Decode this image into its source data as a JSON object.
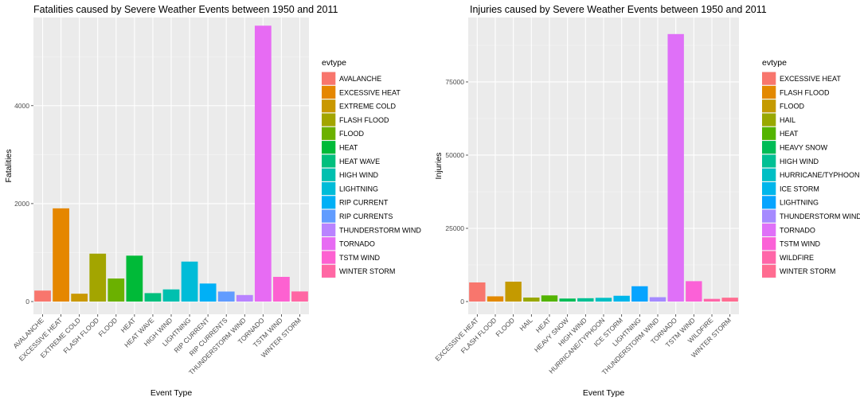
{
  "chart_data": [
    {
      "type": "bar",
      "title": "Fatalities caused by Severe Weather Events between 1950 and 2011",
      "xlabel": "Event Type",
      "ylabel": "Fatalities",
      "ylim": [
        0,
        5800
      ],
      "yticks": [
        0,
        2000,
        4000
      ],
      "ytick_labels": [
        "0",
        "2000",
        "4000"
      ],
      "legend_title": "evtype",
      "legend_position": "right",
      "grid": true,
      "categories": [
        "AVALANCHE",
        "EXCESSIVE HEAT",
        "EXTREME COLD",
        "FLASH FLOOD",
        "FLOOD",
        "HEAT",
        "HEAT WAVE",
        "HIGH WIND",
        "LIGHTNING",
        "RIP CURRENT",
        "RIP CURRENTS",
        "THUNDERSTORM WIND",
        "TORNADO",
        "TSTM WIND",
        "WINTER STORM"
      ],
      "values": [
        224,
        1903,
        160,
        978,
        470,
        937,
        172,
        248,
        816,
        368,
        204,
        133,
        5633,
        504,
        206
      ],
      "colors": [
        "#F8766D",
        "#E58700",
        "#C99800",
        "#A3A500",
        "#6BB100",
        "#00BA38",
        "#00BF7D",
        "#00C0AF",
        "#00BCD8",
        "#00B0F6",
        "#619CFF",
        "#B983FF",
        "#E76BF3",
        "#FD61D1",
        "#FF67A4"
      ]
    },
    {
      "type": "bar",
      "title": "Injuries caused by Severe Weather Events between 1950 and 2011",
      "xlabel": "Event Type",
      "ylabel": "Injuries",
      "ylim": [
        0,
        97000
      ],
      "yticks": [
        0,
        25000,
        50000,
        75000
      ],
      "ytick_labels": [
        "0",
        "25000",
        "50000",
        "75000"
      ],
      "legend_title": "evtype",
      "legend_position": "right",
      "grid": true,
      "categories": [
        "EXCESSIVE HEAT",
        "FLASH FLOOD",
        "FLOOD",
        "HAIL",
        "HEAT",
        "HEAVY SNOW",
        "HIGH WIND",
        "HURRICANE/TYPHOON",
        "ICE STORM",
        "LIGHTNING",
        "THUNDERSTORM WIND",
        "TORNADO",
        "TSTM WIND",
        "WILDFIRE",
        "WINTER STORM"
      ],
      "values": [
        6525,
        1777,
        6789,
        1361,
        2100,
        1021,
        1137,
        1275,
        1975,
        5230,
        1488,
        91346,
        6957,
        911,
        1321
      ],
      "colors": [
        "#F8766D",
        "#E38900",
        "#C49A00",
        "#99A800",
        "#53B400",
        "#00BC56",
        "#00C094",
        "#00BFC4",
        "#00B6EB",
        "#06A4FF",
        "#A58AFF",
        "#DF70F8",
        "#FB61D7",
        "#FF66A8",
        "#FF6C91"
      ]
    }
  ]
}
